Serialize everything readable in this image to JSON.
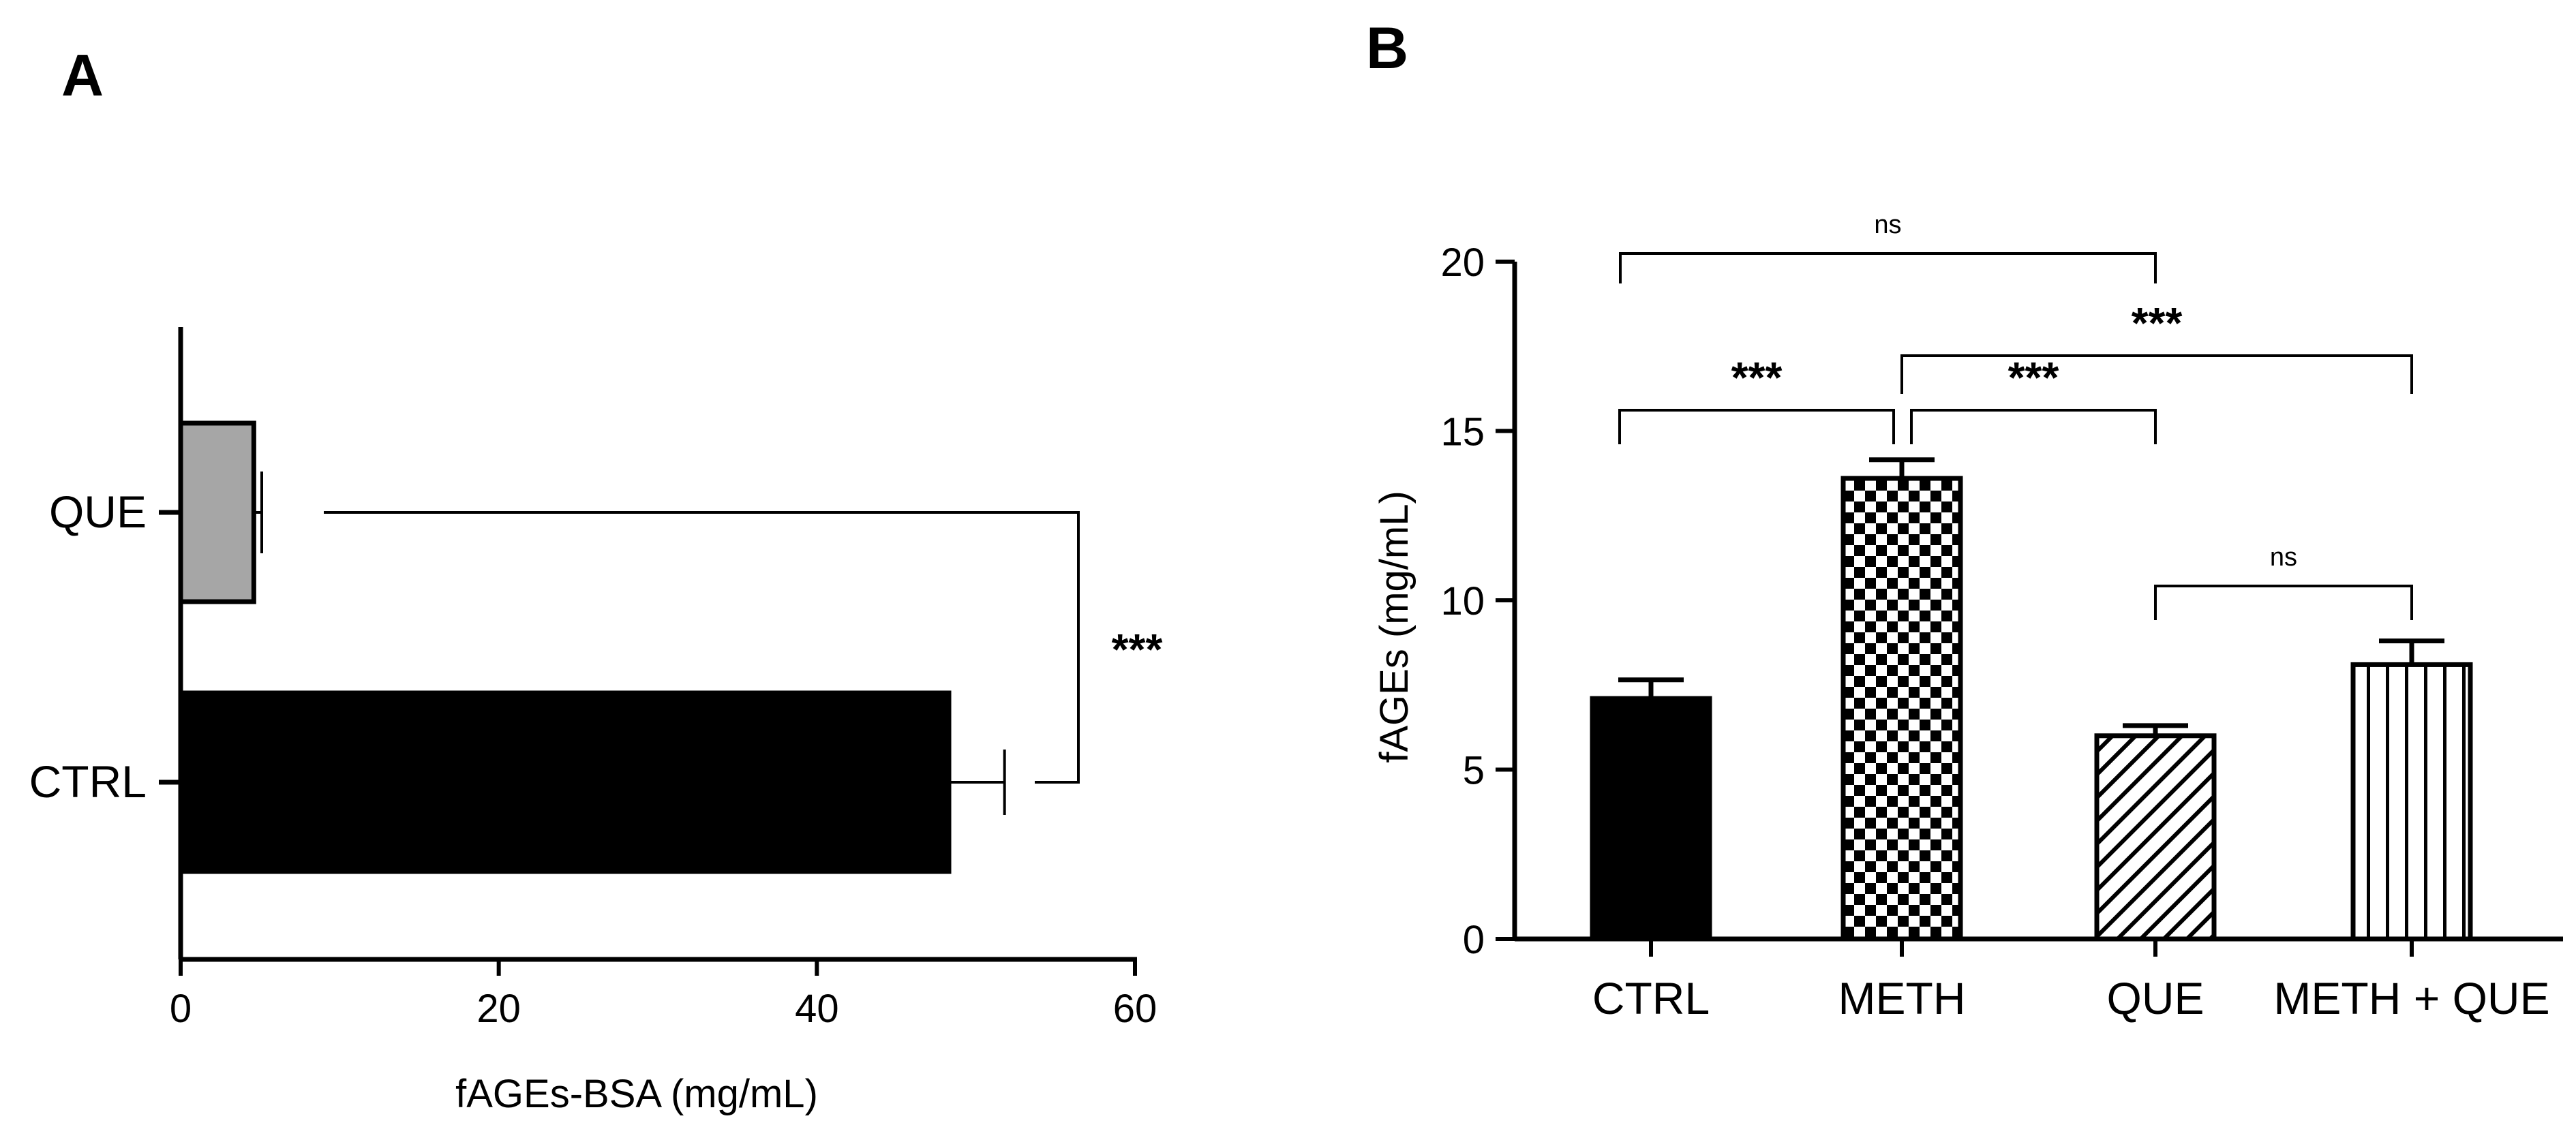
{
  "chart_data": [
    {
      "panel_label": "A",
      "type": "bar",
      "orientation": "horizontal",
      "xlabel": "fAGEs-BSA (mg/mL)",
      "ylabel": "",
      "xlim": [
        0,
        60
      ],
      "xticks": [
        "0",
        "20",
        "40",
        "60"
      ],
      "grid": false,
      "categories": [
        "QUE",
        "CTRL"
      ],
      "series": [
        {
          "name": "fAGEs-BSA",
          "values": [
            4.6,
            48.3
          ],
          "errors": [
            0.5,
            3.5
          ],
          "colors": [
            "#a6a6a6",
            "#000000"
          ]
        }
      ],
      "annotations": [
        {
          "text": "***",
          "between": [
            "QUE",
            "CTRL"
          ]
        }
      ]
    },
    {
      "panel_label": "B",
      "type": "bar",
      "orientation": "vertical",
      "xlabel": "",
      "ylabel": "fAGEs (mg/mL)",
      "ylim": [
        0,
        20
      ],
      "yticks": [
        "0",
        "5",
        "10",
        "15",
        "20"
      ],
      "grid": false,
      "categories": [
        "CTRL",
        "METH",
        "QUE",
        "METH + QUE"
      ],
      "series": [
        {
          "name": "fAGEs",
          "values": [
            7.1,
            13.6,
            6.0,
            8.1
          ],
          "errors": [
            0.55,
            0.55,
            0.3,
            0.7
          ],
          "patterns": [
            "solid",
            "checker",
            "diagonal",
            "vertical-lines"
          ]
        }
      ],
      "annotations": [
        {
          "text": "ns",
          "between": [
            "CTRL",
            "QUE"
          ]
        },
        {
          "text": "***",
          "between": [
            "METH",
            "METH + QUE"
          ]
        },
        {
          "text": "***",
          "between": [
            "CTRL",
            "METH"
          ]
        },
        {
          "text": "***",
          "between": [
            "METH",
            "QUE"
          ]
        },
        {
          "text": "ns",
          "between": [
            "QUE",
            "METH + QUE"
          ]
        }
      ]
    }
  ]
}
